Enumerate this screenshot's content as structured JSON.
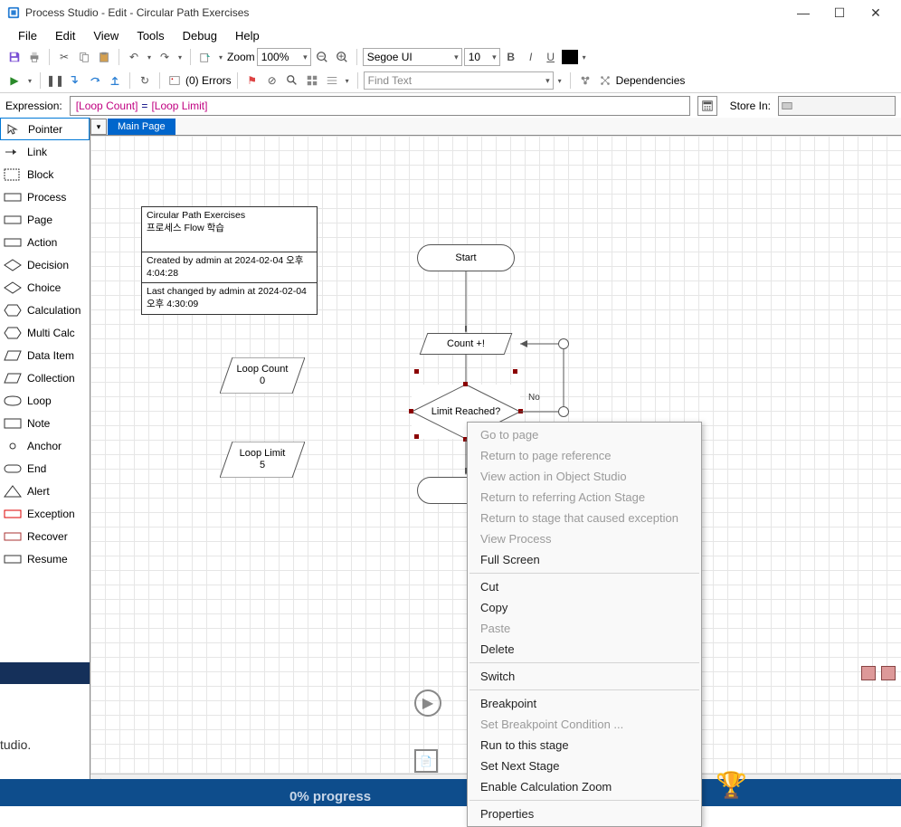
{
  "window": {
    "title": "Process Studio  - Edit - Circular Path Exercises"
  },
  "menu": [
    "File",
    "Edit",
    "View",
    "Tools",
    "Debug",
    "Help"
  ],
  "toolbar1": {
    "zoom_label": "Zoom",
    "zoom_value": "100%",
    "font_name": "Segoe UI",
    "font_size": "10",
    "color_hex": "#000000"
  },
  "toolbar2": {
    "errors_label": "(0) Errors",
    "find_placeholder": "Find Text",
    "deps_label": "Dependencies"
  },
  "exprbar": {
    "label": "Expression:",
    "left": "[Loop Count]",
    "eq": "=",
    "right": "[Loop Limit]",
    "store_label": "Store In:"
  },
  "sidebar": [
    {
      "name": "pointer",
      "label": "Pointer",
      "selected": true
    },
    {
      "name": "link",
      "label": "Link"
    },
    {
      "name": "block",
      "label": "Block"
    },
    {
      "name": "process",
      "label": "Process"
    },
    {
      "name": "page",
      "label": "Page"
    },
    {
      "name": "action",
      "label": "Action"
    },
    {
      "name": "decision",
      "label": "Decision"
    },
    {
      "name": "choice",
      "label": "Choice"
    },
    {
      "name": "calculation",
      "label": "Calculation"
    },
    {
      "name": "multicalc",
      "label": "Multi Calc"
    },
    {
      "name": "dataitem",
      "label": "Data Item"
    },
    {
      "name": "collection",
      "label": "Collection"
    },
    {
      "name": "loop",
      "label": "Loop"
    },
    {
      "name": "note",
      "label": "Note"
    },
    {
      "name": "anchor",
      "label": "Anchor"
    },
    {
      "name": "end",
      "label": "End"
    },
    {
      "name": "alert",
      "label": "Alert"
    },
    {
      "name": "exception",
      "label": "Exception"
    },
    {
      "name": "recover",
      "label": "Recover"
    },
    {
      "name": "resume",
      "label": "Resume"
    }
  ],
  "tabs": {
    "main": "Main Page"
  },
  "infobox": {
    "title": "Circular Path Exercises",
    "subtitle": "프로세스 Flow 학습",
    "created": "Created by admin at 2024-02-04 오후 4:04:28",
    "changed": "Last changed by admin at 2024-02-04 오후 4:30:09"
  },
  "nodes": {
    "start": "Start",
    "count": "Count +!",
    "decision": "Limit Reached?",
    "loopcount_label": "Loop Count",
    "loopcount_value": "0",
    "looplimit_label": "Loop Limit",
    "looplimit_value": "5",
    "no_label": "No"
  },
  "ctx": [
    {
      "t": "Go to page",
      "d": true
    },
    {
      "t": "Return to page reference",
      "d": true
    },
    {
      "t": "View action in Object Studio",
      "d": true
    },
    {
      "t": "Return to referring Action Stage",
      "d": true
    },
    {
      "t": "Return to stage that caused exception",
      "d": true
    },
    {
      "t": "View Process",
      "d": true
    },
    {
      "t": "Full Screen",
      "d": false
    },
    {
      "sep": true
    },
    {
      "t": "Cut",
      "d": false
    },
    {
      "t": "Copy",
      "d": false
    },
    {
      "t": "Paste",
      "d": true
    },
    {
      "t": "Delete",
      "d": false
    },
    {
      "sep": true
    },
    {
      "t": "Switch",
      "d": false
    },
    {
      "sep": true
    },
    {
      "t": "Breakpoint",
      "d": false
    },
    {
      "t": "Set Breakpoint Condition ...",
      "d": true
    },
    {
      "t": "Run to this stage",
      "d": false
    },
    {
      "t": "Set Next Stage",
      "d": false
    },
    {
      "t": "Enable Calculation Zoom",
      "d": false
    },
    {
      "sep": true
    },
    {
      "t": "Properties",
      "d": false
    }
  ],
  "footer": {
    "progress": "0% progress",
    "tudio": "tudio."
  },
  "colors": {
    "tab_bg": "#0066cc",
    "handle": "#8b0000",
    "bracket": "#c00080",
    "footer": "#0e4d8c"
  }
}
